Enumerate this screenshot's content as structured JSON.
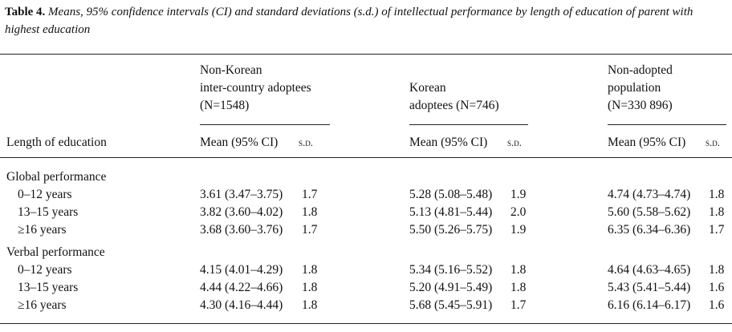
{
  "title": {
    "label": "Table 4.",
    "text": "Means, 95% confidence intervals (CI) and standard deviations (s.d.) of intellectual performance by length of education of parent with highest education"
  },
  "groups": [
    {
      "lines": [
        "Non-Korean",
        "inter-country adoptees",
        "(N=1548)"
      ]
    },
    {
      "lines": [
        "Korean",
        "adoptees (N=746)"
      ]
    },
    {
      "lines": [
        "Non-adopted",
        "population",
        "(N=330 896)"
      ]
    }
  ],
  "columns": {
    "label": "Length of education",
    "mean": "Mean (95% CI)",
    "sd": "s.d."
  },
  "sections": [
    {
      "name": "Global performance",
      "rows": [
        [
          "0–12 years",
          "3.61 (3.47–3.75)",
          "1.7",
          "5.28 (5.08–5.48)",
          "1.9",
          "4.74 (4.73–4.74)",
          "1.8"
        ],
        [
          "13–15 years",
          "3.82 (3.60–4.02)",
          "1.8",
          "5.13 (4.81–5.44)",
          "2.0",
          "5.60 (5.58–5.62)",
          "1.8"
        ],
        [
          "≥16 years",
          "3.68 (3.60–3.76)",
          "1.7",
          "5.50 (5.26–5.75)",
          "1.9",
          "6.35 (6.34–6.36)",
          "1.7"
        ]
      ]
    },
    {
      "name": "Verbal performance",
      "rows": [
        [
          "0–12 years",
          "4.15 (4.01–4.29)",
          "1.8",
          "5.34 (5.16–5.52)",
          "1.8",
          "4.64 (4.63–4.65)",
          "1.8"
        ],
        [
          "13–15 years",
          "4.44 (4.22–4.66)",
          "1.8",
          "5.20 (4.91–5.49)",
          "1.8",
          "5.43 (5.41–5.44)",
          "1.6"
        ],
        [
          "≥16 years",
          "4.30 (4.16–4.44)",
          "1.8",
          "5.68 (5.45–5.91)",
          "1.7",
          "6.16 (6.14–6.17)",
          "1.6"
        ]
      ]
    }
  ]
}
